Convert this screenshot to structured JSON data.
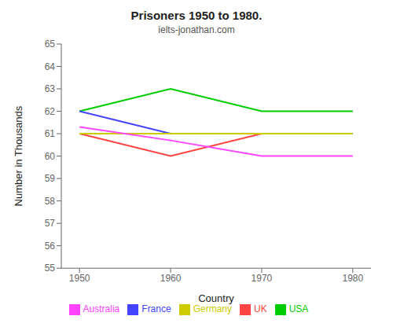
{
  "chart_data": {
    "type": "line",
    "title": "Prisoners 1950 to 1980.",
    "subtitle": "ielts-jonathan.com",
    "x_label": "Country",
    "y_label": "Number in Thousands",
    "x": [
      1950,
      1960,
      1970,
      1980
    ],
    "xlim": [
      1948,
      1982
    ],
    "xticks": [
      1950,
      1960,
      1970,
      1980
    ],
    "ylim": [
      55,
      65
    ],
    "yticks": [
      55,
      56,
      57,
      58,
      59,
      60,
      61,
      62,
      63,
      64,
      65
    ],
    "grid": false,
    "legend": "bottom",
    "series": [
      {
        "name": "UK",
        "color": "#ff4444",
        "values": [
          61,
          60,
          61,
          61
        ]
      },
      {
        "name": "USA",
        "color": "#00cc00",
        "values": [
          62,
          63,
          62,
          62
        ]
      },
      {
        "name": "France",
        "color": "#4444ff",
        "values": [
          62,
          61,
          61,
          61
        ]
      },
      {
        "name": "Germany",
        "color": "#cccc00",
        "values": [
          61,
          61,
          61,
          61
        ]
      },
      {
        "name": "Australia",
        "color": "#ff44ff",
        "values": [
          61.3,
          60.7,
          60,
          60
        ]
      }
    ]
  }
}
